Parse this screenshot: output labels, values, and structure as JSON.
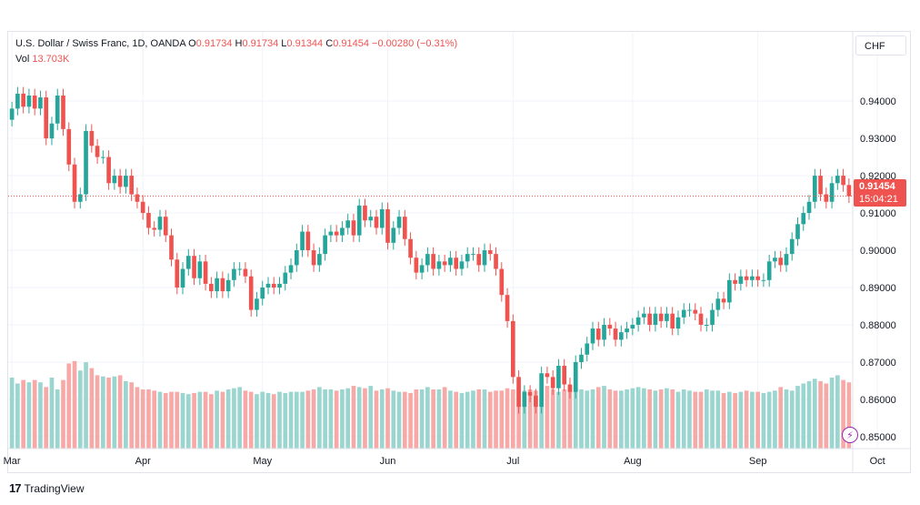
{
  "legend": {
    "symbol": "U.S. Dollar / Swiss Franc, 1D, OANDA",
    "o_label": "O",
    "o_value": "0.91734",
    "h_label": "H",
    "h_value": "0.91734",
    "l_label": "L",
    "l_value": "0.91344",
    "c_label": "C",
    "c_value": "0.91454",
    "change": "−0.00280 (−0.31%)",
    "vol_label": "Vol",
    "vol_value": "13.703K"
  },
  "currency_button": "CHF",
  "last_price": {
    "price": "0.91454",
    "countdown": "15:04:21"
  },
  "branding": {
    "logo": "17",
    "name": "TradingView"
  },
  "icons": {
    "lightning": "lightning-icon",
    "logo": "tradingview-logo-icon"
  },
  "colors": {
    "up": "#26a69a",
    "down": "#ef5350",
    "vol_up": "#9ad6cf",
    "vol_down": "#f7a9a7",
    "grid": "#f0f3fa"
  },
  "chart_data": {
    "type": "candlestick",
    "price_axis_ticks": [
      "0.94000",
      "0.93000",
      "0.92000",
      "0.91000",
      "0.90000",
      "0.89000",
      "0.88000",
      "0.87000",
      "0.86000",
      "0.85000"
    ],
    "ylim": [
      0.8468,
      0.9476
    ],
    "time_axis_labels": [
      {
        "label": "Mar",
        "index": 0
      },
      {
        "label": "Apr",
        "index": 23
      },
      {
        "label": "May",
        "index": 44
      },
      {
        "label": "Jun",
        "index": 66
      },
      {
        "label": "Jul",
        "index": 88
      },
      {
        "label": "Aug",
        "index": 109
      },
      {
        "label": "Sep",
        "index": 131
      },
      {
        "label": "Oct",
        "index": 152
      }
    ],
    "grid": true,
    "last_close": 0.91454,
    "series": [
      {
        "name": "U.S. Dollar / Swiss Franc",
        "closes": [
          0.938,
          0.942,
          0.9385,
          0.9415,
          0.938,
          0.941,
          0.93,
          0.934,
          0.9415,
          0.9325,
          0.923,
          0.913,
          0.915,
          0.932,
          0.928,
          0.925,
          0.925,
          0.918,
          0.92,
          0.917,
          0.92,
          0.915,
          0.913,
          0.91,
          0.906,
          0.9055,
          0.909,
          0.904,
          0.8975,
          0.89,
          0.895,
          0.8985,
          0.8925,
          0.897,
          0.891,
          0.889,
          0.8925,
          0.889,
          0.892,
          0.895,
          0.895,
          0.893,
          0.884,
          0.887,
          0.89,
          0.891,
          0.89,
          0.891,
          0.894,
          0.896,
          0.9,
          0.905,
          0.9,
          0.896,
          0.899,
          0.904,
          0.905,
          0.904,
          0.906,
          0.908,
          0.904,
          0.912,
          0.908,
          0.909,
          0.906,
          0.911,
          0.902,
          0.906,
          0.909,
          0.903,
          0.898,
          0.894,
          0.896,
          0.899,
          0.895,
          0.897,
          0.896,
          0.898,
          0.895,
          0.897,
          0.899,
          0.899,
          0.896,
          0.9,
          0.899,
          0.895,
          0.888,
          0.881,
          0.866,
          0.858,
          0.862,
          0.861,
          0.858,
          0.867,
          0.866,
          0.863,
          0.869,
          0.864,
          0.862,
          0.87,
          0.872,
          0.875,
          0.879,
          0.876,
          0.88,
          0.879,
          0.876,
          0.878,
          0.879,
          0.88,
          0.882,
          0.883,
          0.88,
          0.883,
          0.881,
          0.883,
          0.879,
          0.882,
          0.884,
          0.884,
          0.883,
          0.88,
          0.88,
          0.884,
          0.887,
          0.886,
          0.892,
          0.891,
          0.893,
          0.892,
          0.893,
          0.892,
          0.892,
          0.897,
          0.898,
          0.896,
          0.899,
          0.903,
          0.907,
          0.91,
          0.913,
          0.92,
          0.915,
          0.913,
          0.918,
          0.92,
          0.9175,
          0.9145
        ]
      },
      {
        "name": "Vol",
        "values": [
          60,
          55,
          58,
          56,
          58,
          56,
          52,
          60,
          50,
          58,
          72,
          74,
          66,
          73,
          68,
          62,
          61,
          60,
          61,
          62,
          57,
          56,
          52,
          50,
          50,
          49,
          48,
          47,
          48,
          48,
          47,
          46,
          47,
          48,
          48,
          46,
          49,
          48,
          50,
          51,
          52,
          49,
          48,
          46,
          48,
          47,
          46,
          48,
          47,
          48,
          48,
          48,
          49,
          50,
          52,
          50,
          50,
          49,
          50,
          51,
          53,
          52,
          51,
          53,
          49,
          50,
          51,
          49,
          48,
          48,
          47,
          50,
          50,
          52,
          50,
          50,
          52,
          49,
          48,
          47,
          48,
          49,
          50,
          50,
          48,
          49,
          49,
          51,
          50,
          51,
          49,
          50,
          49,
          51,
          53,
          50,
          48,
          50,
          52,
          55,
          50,
          49,
          50,
          52,
          53,
          50,
          49,
          49,
          50,
          51,
          52,
          51,
          50,
          49,
          50,
          51,
          50,
          48,
          50,
          49,
          48,
          48,
          50,
          49,
          49,
          47,
          48,
          47,
          48,
          49,
          48,
          48,
          47,
          48,
          49,
          52,
          50,
          49,
          53,
          55,
          57,
          59,
          57,
          55,
          60,
          62,
          58,
          56
        ]
      }
    ]
  }
}
